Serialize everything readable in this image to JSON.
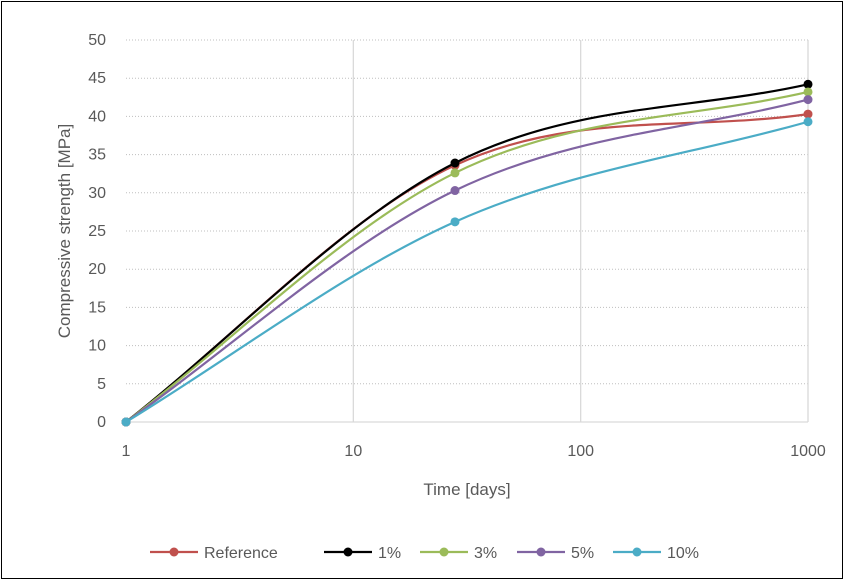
{
  "chart_data": {
    "type": "line",
    "title": "",
    "xlabel": "Time [days]",
    "ylabel": "Compressive strength [MPa]",
    "xscale": "log",
    "xlim": [
      1,
      1000
    ],
    "ylim": [
      0,
      50
    ],
    "x_ticks": [
      "1",
      "10",
      "100",
      "1000"
    ],
    "y_ticks": [
      "0",
      "5",
      "10",
      "15",
      "20",
      "25",
      "30",
      "35",
      "40",
      "45",
      "50"
    ],
    "grid": "major x solid, y dotted",
    "legend": "bottom",
    "series": [
      {
        "name": "Reference",
        "color": "#c0504d",
        "x": [
          1,
          28,
          1000
        ],
        "y": [
          0,
          33.6,
          40.3
        ]
      },
      {
        "name": "1%",
        "color": "#000000",
        "x": [
          1,
          28,
          1000
        ],
        "y": [
          0,
          33.9,
          44.2
        ]
      },
      {
        "name": "3%",
        "color": "#9bbb59",
        "x": [
          1,
          28,
          1000
        ],
        "y": [
          0,
          32.6,
          43.2
        ]
      },
      {
        "name": "5%",
        "color": "#8064a2",
        "x": [
          1,
          28,
          1000
        ],
        "y": [
          0,
          30.3,
          42.2
        ]
      },
      {
        "name": "10%",
        "color": "#4bacc6",
        "x": [
          1,
          28,
          1000
        ],
        "y": [
          0,
          26.2,
          39.3
        ]
      }
    ]
  }
}
